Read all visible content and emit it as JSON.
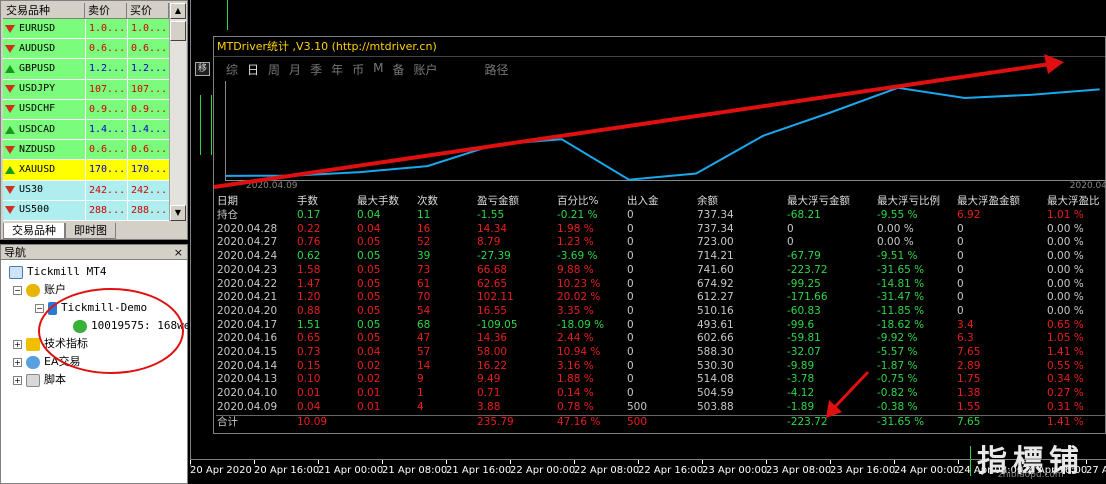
{
  "market_watch": {
    "columns": [
      "交易品种",
      "卖价",
      "买价"
    ],
    "rows": [
      {
        "symbol": "EURUSD",
        "bid": "1.0...",
        "ask": "1.0...",
        "dir": "down",
        "bg": "#7cfc7c"
      },
      {
        "symbol": "AUDUSD",
        "bid": "0.6...",
        "ask": "0.6...",
        "dir": "down",
        "bg": "#7cfc7c"
      },
      {
        "symbol": "GBPUSD",
        "bid": "1.2...",
        "ask": "1.2...",
        "dir": "up",
        "bg": "#7cfc7c"
      },
      {
        "symbol": "USDJPY",
        "bid": "107...",
        "ask": "107...",
        "dir": "down",
        "bg": "#7cfc7c"
      },
      {
        "symbol": "USDCHF",
        "bid": "0.9...",
        "ask": "0.9...",
        "dir": "down",
        "bg": "#7cfc7c"
      },
      {
        "symbol": "USDCAD",
        "bid": "1.4...",
        "ask": "1.4...",
        "dir": "up",
        "bg": "#7cfc7c"
      },
      {
        "symbol": "NZDUSD",
        "bid": "0.6...",
        "ask": "0.6...",
        "dir": "down",
        "bg": "#7cfc7c"
      },
      {
        "symbol": "XAUUSD",
        "bid": "170...",
        "ask": "170...",
        "dir": "up",
        "bg": "#ffff00"
      },
      {
        "symbol": "US30",
        "bid": "242...",
        "ask": "242...",
        "dir": "down",
        "bg": "#aeeeee"
      },
      {
        "symbol": "US500",
        "bid": "288...",
        "ask": "288...",
        "dir": "down",
        "bg": "#aeeeee"
      }
    ],
    "tabs": [
      "交易品种",
      "即时图"
    ]
  },
  "navigator": {
    "title": "导航",
    "close": "×",
    "root": "Tickmill MT4",
    "accounts": "账户",
    "server": "Tickmill-Demo",
    "account": "10019575: 168we",
    "indicators": "技术指标",
    "experts": "EA交易",
    "scripts": "脚本"
  },
  "mtdriver": {
    "title": "MTDriver统计 ,V3.10 (http://mtdriver.cn)",
    "pin": "移",
    "tabs": [
      "综",
      "日",
      "周",
      "月",
      "季",
      "年",
      "币",
      "M",
      "备",
      "账户"
    ],
    "active_tab": "日",
    "path_label": "路径",
    "curve_start_label": "2020.04.09",
    "curve_end_label": "2020.04",
    "columns": [
      "日期",
      "手数",
      "最大手数",
      "次数",
      "盈亏金额",
      "百分比%",
      "出入金",
      "余额",
      "最大浮亏金额",
      "最大浮亏比例",
      "最大浮盈金额",
      "最大浮盈比"
    ],
    "rows": [
      [
        "持仓",
        "0.17",
        "0.04",
        "11",
        "-1.55",
        "-0.21 %",
        "0",
        "737.34",
        "-68.21",
        "-9.55 %",
        "6.92",
        "1.01 %"
      ],
      [
        "2020.04.28",
        "0.22",
        "0.04",
        "16",
        "14.34",
        "1.98 %",
        "0",
        "737.34",
        "0",
        "0.00 %",
        "0",
        "0.00 %"
      ],
      [
        "2020.04.27",
        "0.76",
        "0.05",
        "52",
        "8.79",
        "1.23 %",
        "0",
        "723.00",
        "0",
        "0.00 %",
        "0",
        "0.00 %"
      ],
      [
        "2020.04.24",
        "0.62",
        "0.05",
        "39",
        "-27.39",
        "-3.69 %",
        "0",
        "714.21",
        "-67.79",
        "-9.51 %",
        "0",
        "0.00 %"
      ],
      [
        "2020.04.23",
        "1.58",
        "0.05",
        "73",
        "66.68",
        "9.88 %",
        "0",
        "741.60",
        "-223.72",
        "-31.65 %",
        "0",
        "0.00 %"
      ],
      [
        "2020.04.22",
        "1.47",
        "0.05",
        "61",
        "62.65",
        "10.23 %",
        "0",
        "674.92",
        "-99.25",
        "-14.81 %",
        "0",
        "0.00 %"
      ],
      [
        "2020.04.21",
        "1.20",
        "0.05",
        "70",
        "102.11",
        "20.02 %",
        "0",
        "612.27",
        "-171.66",
        "-31.47 %",
        "0",
        "0.00 %"
      ],
      [
        "2020.04.20",
        "0.88",
        "0.05",
        "54",
        "16.55",
        "3.35 %",
        "0",
        "510.16",
        "-60.83",
        "-11.85 %",
        "0",
        "0.00 %"
      ],
      [
        "2020.04.17",
        "1.51",
        "0.05",
        "68",
        "-109.05",
        "-18.09 %",
        "0",
        "493.61",
        "-99.6",
        "-18.62 %",
        "3.4",
        "0.65 %"
      ],
      [
        "2020.04.16",
        "0.65",
        "0.05",
        "47",
        "14.36",
        "2.44 %",
        "0",
        "602.66",
        "-59.81",
        "-9.92 %",
        "6.3",
        "1.05 %"
      ],
      [
        "2020.04.15",
        "0.73",
        "0.04",
        "57",
        "58.00",
        "10.94 %",
        "0",
        "588.30",
        "-32.07",
        "-5.57 %",
        "7.65",
        "1.41 %"
      ],
      [
        "2020.04.14",
        "0.15",
        "0.02",
        "14",
        "16.22",
        "3.16 %",
        "0",
        "530.30",
        "-9.89",
        "-1.87 %",
        "2.89",
        "0.55 %"
      ],
      [
        "2020.04.13",
        "0.10",
        "0.02",
        "9",
        "9.49",
        "1.88 %",
        "0",
        "514.08",
        "-3.78",
        "-0.75 %",
        "1.75",
        "0.34 %"
      ],
      [
        "2020.04.10",
        "0.01",
        "0.01",
        "1",
        "0.71",
        "0.14 %",
        "0",
        "504.59",
        "-4.12",
        "-0.82 %",
        "1.38",
        "0.27 %"
      ],
      [
        "2020.04.09",
        "0.04",
        "0.01",
        "4",
        "3.88",
        "0.78 %",
        "500",
        "503.88",
        "-1.89",
        "-0.38 %",
        "1.55",
        "0.31 %"
      ]
    ],
    "total": [
      "合计",
      "10.09",
      "",
      "",
      "235.79",
      "47.16 %",
      "500",
      "",
      "-223.72",
      "-31.65 %",
      "7.65",
      "1.41 %"
    ]
  },
  "chart_data": {
    "type": "line",
    "x": [
      "2020.04.09",
      "2020.04.10",
      "2020.04.13",
      "2020.04.14",
      "2020.04.15",
      "2020.04.16",
      "2020.04.17",
      "2020.04.20",
      "2020.04.21",
      "2020.04.22",
      "2020.04.23",
      "2020.04.24",
      "2020.04.27",
      "2020.04.28"
    ],
    "series": [
      {
        "values": [
          503.88,
          504.59,
          514.08,
          530.3,
          588.3,
          602.66,
          493.61,
          510.16,
          612.27,
          674.92,
          741.6,
          714.21,
          723.0,
          737.34
        ]
      }
    ],
    "ylim": [
      490,
      760
    ],
    "line_color": "#1aa7ec"
  },
  "x_axis": [
    "20 Apr 2020",
    "20 Apr 16:00",
    "21 Apr 00:00",
    "21 Apr 08:00",
    "21 Apr 16:00",
    "22 Apr 00:00",
    "22 Apr 08:00",
    "22 Apr 16:00",
    "23 Apr 00:00",
    "23 Apr 08:00",
    "23 Apr 16:00",
    "24 Apr 00:00",
    "24 Apr 08:00",
    "24 Apr 16:00",
    "27 Ap"
  ],
  "watermark": {
    "text": "指標铺",
    "sub": "zhibiaopu.com"
  }
}
